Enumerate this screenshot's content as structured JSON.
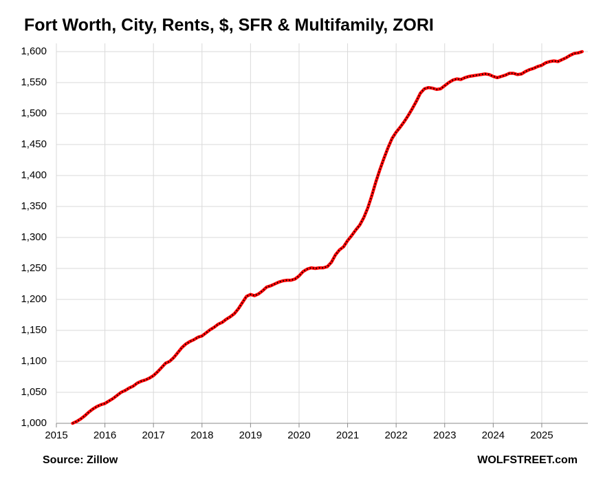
{
  "chart_data": {
    "type": "line",
    "title": "Fort Worth, City, Rents, $, SFR & Multifamily, ZORI",
    "source": "Source: Zillow",
    "credit": "WOLFSTREET.com",
    "x": [
      2015.333,
      2015.417,
      2015.5,
      2015.583,
      2015.667,
      2015.75,
      2015.833,
      2015.917,
      2016.0,
      2016.083,
      2016.167,
      2016.25,
      2016.333,
      2016.417,
      2016.5,
      2016.583,
      2016.667,
      2016.75,
      2016.833,
      2016.917,
      2017.0,
      2017.083,
      2017.167,
      2017.25,
      2017.333,
      2017.417,
      2017.5,
      2017.583,
      2017.667,
      2017.75,
      2017.833,
      2017.917,
      2018.0,
      2018.083,
      2018.167,
      2018.25,
      2018.333,
      2018.417,
      2018.5,
      2018.583,
      2018.667,
      2018.75,
      2018.833,
      2018.917,
      2019.0,
      2019.083,
      2019.167,
      2019.25,
      2019.333,
      2019.417,
      2019.5,
      2019.583,
      2019.667,
      2019.75,
      2019.833,
      2019.917,
      2020.0,
      2020.083,
      2020.167,
      2020.25,
      2020.333,
      2020.417,
      2020.5,
      2020.583,
      2020.667,
      2020.75,
      2020.833,
      2020.917,
      2021.0,
      2021.083,
      2021.167,
      2021.25,
      2021.333,
      2021.417,
      2021.5,
      2021.583,
      2021.667,
      2021.75,
      2021.833,
      2021.917,
      2022.0,
      2022.083,
      2022.167,
      2022.25,
      2022.333,
      2022.417,
      2022.5,
      2022.583,
      2022.667,
      2022.75,
      2022.833,
      2022.917,
      2023.0,
      2023.083,
      2023.167,
      2023.25,
      2023.333,
      2023.417,
      2023.5,
      2023.583,
      2023.667,
      2023.75,
      2023.833,
      2023.917,
      2024.0,
      2024.083,
      2024.167,
      2024.25,
      2024.333,
      2024.417,
      2024.5,
      2024.583,
      2024.667,
      2024.75,
      2024.833,
      2024.917,
      2025.0,
      2025.083,
      2025.167,
      2025.25,
      2025.333,
      2025.417,
      2025.5,
      2025.583,
      2025.667,
      2025.75,
      2025.833
    ],
    "series": [
      {
        "name": "ZORI",
        "color": "#ff0000",
        "marker_color": "#000000",
        "values": [
          1000,
          1003,
          1007,
          1012,
          1018,
          1023,
          1027,
          1030,
          1032,
          1036,
          1040,
          1045,
          1050,
          1053,
          1057,
          1060,
          1065,
          1068,
          1070,
          1073,
          1077,
          1083,
          1090,
          1097,
          1100,
          1106,
          1114,
          1122,
          1128,
          1132,
          1135,
          1139,
          1141,
          1146,
          1151,
          1155,
          1160,
          1163,
          1168,
          1172,
          1177,
          1185,
          1195,
          1205,
          1208,
          1206,
          1209,
          1214,
          1220,
          1222,
          1225,
          1228,
          1230,
          1231,
          1231,
          1233,
          1238,
          1245,
          1249,
          1251,
          1250,
          1251,
          1251,
          1253,
          1260,
          1272,
          1280,
          1285,
          1295,
          1303,
          1312,
          1320,
          1332,
          1348,
          1368,
          1390,
          1410,
          1428,
          1445,
          1460,
          1470,
          1478,
          1487,
          1497,
          1508,
          1520,
          1533,
          1540,
          1542,
          1541,
          1539,
          1540,
          1545,
          1550,
          1554,
          1556,
          1555,
          1558,
          1560,
          1561,
          1562,
          1563,
          1564,
          1563,
          1560,
          1558,
          1560,
          1562,
          1565,
          1565,
          1563,
          1564,
          1568,
          1571,
          1573,
          1576,
          1578,
          1582,
          1584,
          1585,
          1584,
          1587,
          1590,
          1594,
          1597,
          1598,
          1600
        ]
      }
    ],
    "xlim": [
      2015,
      2025.95
    ],
    "xticks": [
      2015,
      2016,
      2017,
      2018,
      2019,
      2020,
      2021,
      2022,
      2023,
      2024,
      2025
    ],
    "ylim": [
      1000,
      1600
    ],
    "yticks": [
      {
        "value": 1000,
        "label": "1,000"
      },
      {
        "value": 1050,
        "label": "1,050"
      },
      {
        "value": 1100,
        "label": "1,100"
      },
      {
        "value": 1150,
        "label": "1,150"
      },
      {
        "value": 1200,
        "label": "1,200"
      },
      {
        "value": 1250,
        "label": "1,250"
      },
      {
        "value": 1300,
        "label": "1,300"
      },
      {
        "value": 1350,
        "label": "1,350"
      },
      {
        "value": 1400,
        "label": "1,400"
      },
      {
        "value": 1450,
        "label": "1,450"
      },
      {
        "value": 1500,
        "label": "1,500"
      },
      {
        "value": 1550,
        "label": "1,550"
      },
      {
        "value": 1600,
        "label": "1,600"
      }
    ],
    "grid": true
  }
}
